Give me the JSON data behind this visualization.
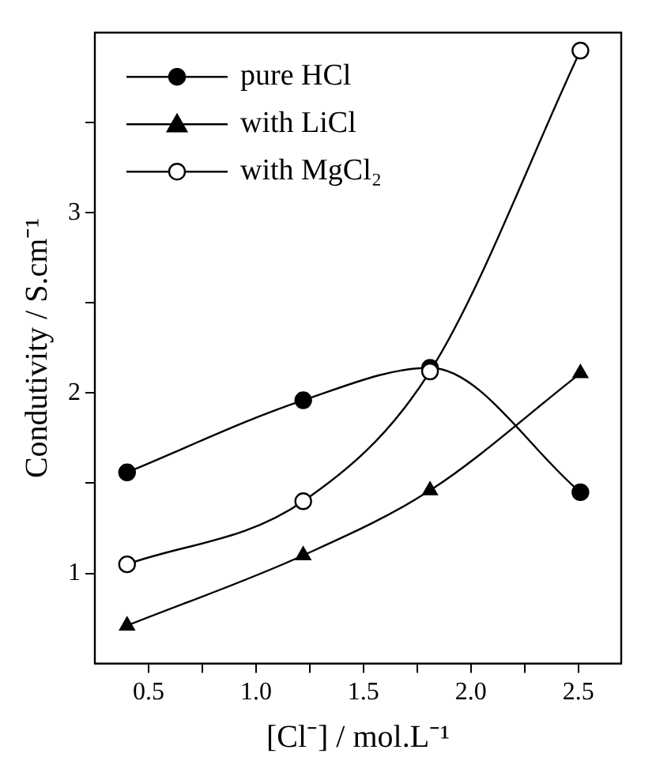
{
  "chart_data": {
    "type": "line",
    "xlabel": "[Cl⁻] / mol.L⁻¹",
    "ylabel": "Condutivity / S.cm⁻¹",
    "series": [
      {
        "name": "pure HCl",
        "color": "#000000",
        "marker": "circle",
        "x": [
          0.4,
          1.22,
          1.81,
          2.51
        ],
        "values": [
          1.56,
          1.96,
          2.14,
          1.45
        ]
      },
      {
        "name": "with LiCl",
        "color": "#000000",
        "marker": "triangle",
        "x": [
          0.4,
          1.22,
          1.81,
          2.51
        ],
        "values": [
          0.71,
          1.1,
          1.46,
          2.11
        ]
      },
      {
        "name": "with MgCl₂",
        "color": "#000000",
        "marker": "open-circle",
        "x": [
          0.4,
          1.22,
          1.81,
          2.51
        ],
        "values": [
          1.05,
          1.4,
          2.12,
          3.9
        ]
      }
    ],
    "xlim": [
      0.25,
      2.7
    ],
    "xticks": [
      0.5,
      {
        "value": 0.75,
        "label": null
      },
      {
        "value": 1,
        "label": "1.0"
      },
      {
        "value": 1.25,
        "label": null
      },
      1.5,
      {
        "value": 1.75,
        "label": null
      },
      {
        "value": 2,
        "label": "2.0"
      },
      {
        "value": 2.25,
        "label": null
      },
      2.5
    ],
    "ylim": [
      0.5,
      4.0
    ],
    "yticks": [
      1,
      {
        "value": 1.5,
        "label": null
      },
      2,
      {
        "value": 2.5,
        "label": null
      },
      3,
      {
        "value": 3.5,
        "label": null
      }
    ],
    "grid": false,
    "legend": "top left",
    "line_style": "solid"
  }
}
